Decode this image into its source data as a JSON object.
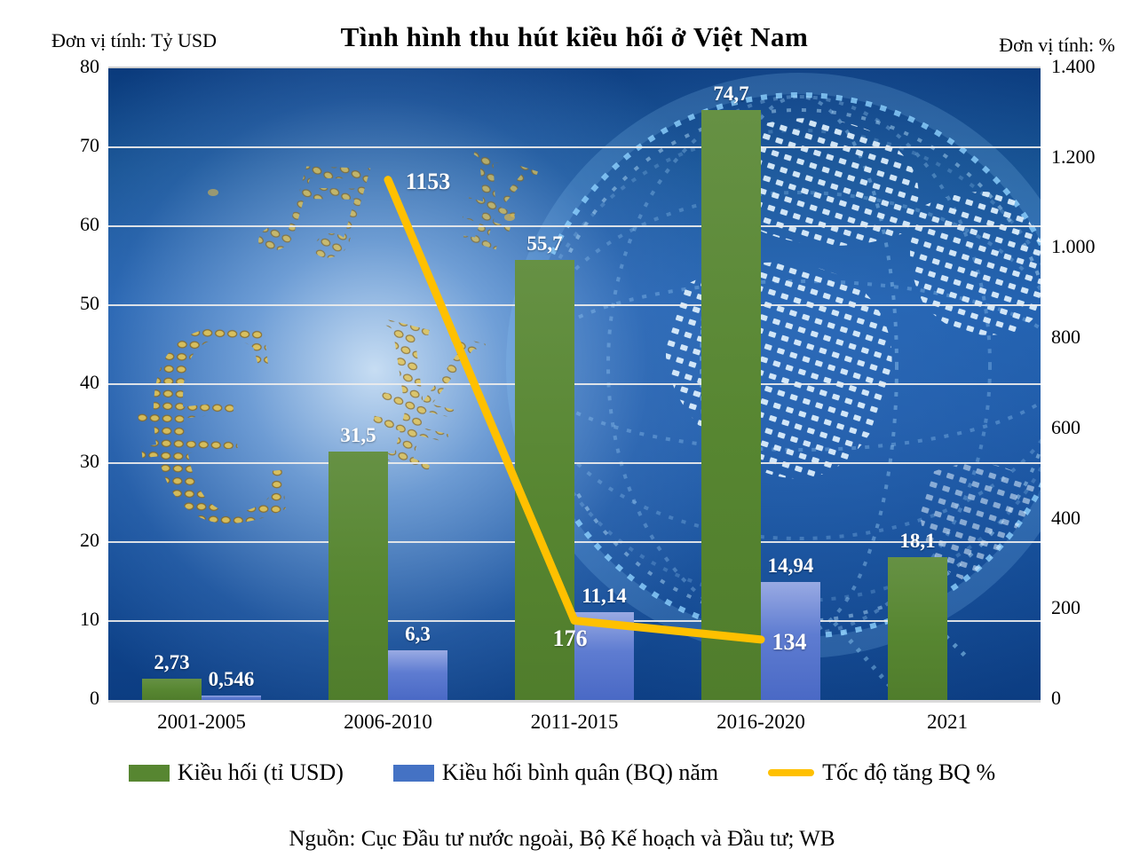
{
  "header": {
    "left_unit": "Đơn vị tính: Tỷ USD",
    "title": "Tình hình thu hút kiều hối ở Việt Nam",
    "right_unit": "Đơn vị tính: %"
  },
  "chart_data": {
    "type": "combo bar+line",
    "title": "Tình hình thu hút kiều hối ở Việt Nam",
    "categories": [
      "2001-2005",
      "2006-2010",
      "2011-2015",
      "2016-2020",
      "2021"
    ],
    "series": [
      {
        "name": "Kiều hối (tỉ USD)",
        "type": "bar",
        "axis": "left",
        "color": "#578631",
        "values": [
          2.73,
          31.5,
          55.7,
          74.7,
          18.1
        ],
        "labels": [
          "2,73",
          "31,5",
          "55,7",
          "74,7",
          "18,1"
        ]
      },
      {
        "name": "Kiều hối bình quân (BQ) năm",
        "type": "bar",
        "axis": "left",
        "color": "#4472c4",
        "values": [
          0.546,
          6.3,
          11.14,
          14.94,
          null
        ],
        "labels": [
          "0,546",
          "6,3",
          "11,14",
          "14,94",
          null
        ]
      },
      {
        "name": "Tốc độ tăng BQ %",
        "type": "line",
        "axis": "right",
        "color": "#ffc000",
        "values": [
          null,
          1153,
          176,
          134,
          null
        ],
        "labels": [
          null,
          "1153",
          "176",
          "134",
          null
        ]
      }
    ],
    "left_axis": {
      "title": "Đơn vị tính: Tỷ USD",
      "min": 0,
      "max": 80,
      "step": 10,
      "ticks": [
        "80",
        "70",
        "60",
        "50",
        "40",
        "30",
        "20",
        "10",
        "0"
      ]
    },
    "right_axis": {
      "title": "Đơn vị tính: %",
      "min": 0,
      "max": 1400,
      "step": 200,
      "ticks": [
        "1.400",
        "1.200",
        "1.000",
        "800",
        "600",
        "400",
        "200",
        "0"
      ]
    },
    "grid": true,
    "legend_position": "bottom"
  },
  "legend": {
    "items": [
      {
        "label": "Kiều hối (tỉ USD)",
        "swatch": "green-bar",
        "color": "#578631"
      },
      {
        "label": "Kiều hối bình quân (BQ) năm",
        "swatch": "blue-bar",
        "color": "#4472c4"
      },
      {
        "label": "Tốc độ tăng BQ %",
        "swatch": "yellow-line",
        "color": "#ffc000"
      }
    ]
  },
  "source": "Nguồn: Cục Đầu tư nước ngoài, Bộ Kế hoạch và Đầu tư; WB",
  "colors": {
    "bar_green": "#578631",
    "bar_blue": "#4472c4",
    "line_yellow": "#ffc000",
    "plot_navy": "#0c3d82",
    "gridline": "#ececec"
  }
}
